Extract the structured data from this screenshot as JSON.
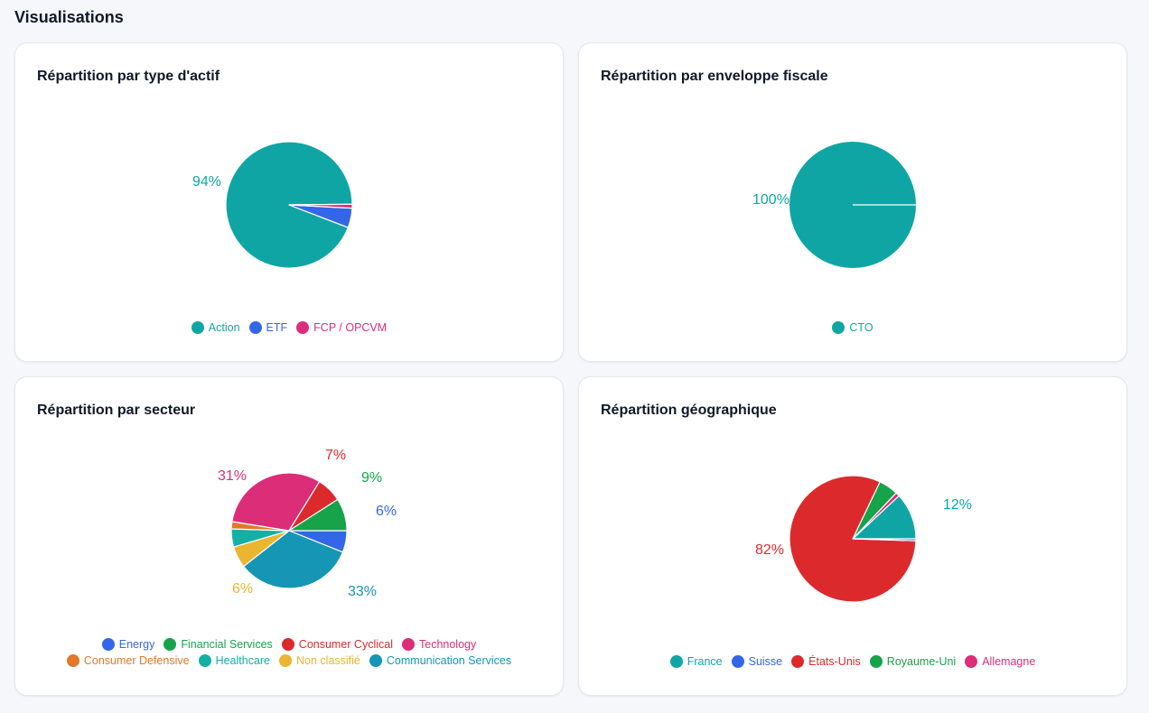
{
  "page": {
    "title": "Visualisations"
  },
  "charts": [
    {
      "id": "asset-type",
      "title": "Répartition par type d'actif",
      "chart_data": {
        "type": "pie",
        "slices": [
          {
            "name": "Action",
            "value": 94,
            "color": "#10a5a5"
          },
          {
            "name": "ETF",
            "value": 5,
            "color": "#3367e8"
          },
          {
            "name": "FCP / OPCVM",
            "value": 1,
            "color": "#dc2d78"
          }
        ],
        "labels": [
          {
            "text": "94%",
            "color": "#10a5a5"
          }
        ],
        "legend": {
          "placement": "bottom",
          "rows": [
            [
              "Action",
              "ETF",
              "FCP / OPCVM"
            ]
          ]
        }
      }
    },
    {
      "id": "tax-wrapper",
      "title": "Répartition par enveloppe fiscale",
      "chart_data": {
        "type": "pie",
        "slices": [
          {
            "name": "CTO",
            "value": 100,
            "color": "#10a5a5"
          }
        ],
        "labels": [
          {
            "text": "100%",
            "color": "#10a5a5"
          }
        ],
        "legend": {
          "placement": "bottom",
          "rows": [
            [
              "CTO"
            ]
          ]
        }
      }
    },
    {
      "id": "sector",
      "title": "Répartition par secteur",
      "chart_data": {
        "type": "pie",
        "slices": [
          {
            "name": "Energy",
            "value": 6,
            "color": "#3367e8"
          },
          {
            "name": "Communication Services",
            "value": 33,
            "color": "#1496b4"
          },
          {
            "name": "Non classifié",
            "value": 6,
            "color": "#eab531"
          },
          {
            "name": "Healthcare",
            "value": 5,
            "color": "#14b0a4"
          },
          {
            "name": "Consumer Defensive",
            "value": 2,
            "color": "#e1792a"
          },
          {
            "name": "Technology",
            "value": 31,
            "color": "#dc2d78"
          },
          {
            "name": "Consumer Cyclical",
            "value": 7,
            "color": "#dc2a2c"
          },
          {
            "name": "Financial Services",
            "value": 9,
            "color": "#16a34a"
          }
        ],
        "labels": [
          {
            "text": "6%",
            "color": "#3367e8"
          },
          {
            "text": "33%",
            "color": "#1496b4"
          },
          {
            "text": "6%",
            "color": "#eab531"
          },
          {
            "text": "31%",
            "color": "#dc2d78"
          },
          {
            "text": "7%",
            "color": "#dc2a2c"
          },
          {
            "text": "9%",
            "color": "#16a34a"
          }
        ],
        "legend": {
          "placement": "bottom",
          "rows": [
            [
              "Energy",
              "Financial Services",
              "Consumer Cyclical",
              "Technology"
            ],
            [
              "Consumer Defensive",
              "Healthcare",
              "Non classifié",
              "Communication Services"
            ]
          ]
        }
      }
    },
    {
      "id": "geo",
      "title": "Répartition géographique",
      "chart_data": {
        "type": "pie",
        "slices": [
          {
            "name": "France",
            "value": 12,
            "color": "#10a5a5"
          },
          {
            "name": "Allemagne",
            "value": 1,
            "color": "#dc2d78"
          },
          {
            "name": "Royaume-Uni",
            "value": 5,
            "color": "#16a34a"
          },
          {
            "name": "États-Unis",
            "value": 82,
            "color": "#dc2a2c"
          },
          {
            "name": "Suisse",
            "value": 0.5,
            "color": "#3367e8"
          }
        ],
        "labels": [
          {
            "text": "12%",
            "color": "#10a5a5"
          },
          {
            "text": "82%",
            "color": "#dc2a2c"
          }
        ],
        "legend": {
          "placement": "bottom",
          "rows": [
            [
              "France",
              "Suisse",
              "États-Unis",
              "Royaume-Uni",
              "Allemagne"
            ]
          ]
        }
      }
    }
  ]
}
